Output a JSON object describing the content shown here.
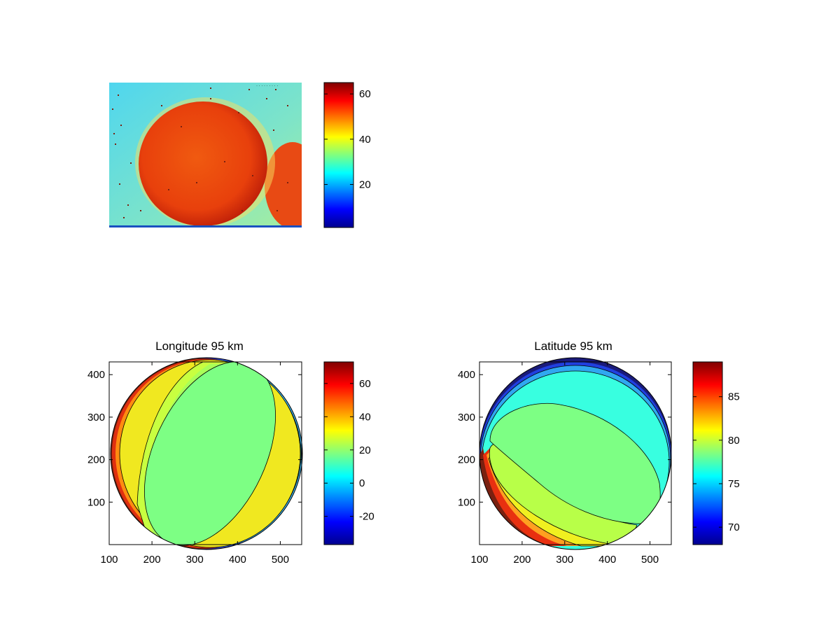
{
  "colormap": "jet",
  "jet_stops": [
    "#00008f",
    "#0000ff",
    "#00ffff",
    "#ffff00",
    "#ff0000",
    "#800000"
  ],
  "chart_data": [
    {
      "type": "heatmap",
      "title": "",
      "description_values": {
        "disk_level": 55,
        "background_level": 30
      },
      "colorbar": {
        "min": 1,
        "max": 65,
        "ticks": [
          20,
          40,
          60
        ]
      }
    },
    {
      "type": "heatmap",
      "title": "Longitude 95 km",
      "xlim": [
        100,
        550
      ],
      "ylim": [
        0,
        430
      ],
      "xticks": [
        100,
        200,
        300,
        400,
        500
      ],
      "yticks": [
        100,
        200,
        300,
        400
      ],
      "colorbar": {
        "min": -37,
        "max": 73,
        "ticks": [
          -20,
          0,
          20,
          40,
          60
        ]
      },
      "contour_levels": [
        70,
        60,
        50,
        40,
        30,
        20,
        10,
        0,
        -10,
        -20
      ]
    },
    {
      "type": "heatmap",
      "title": "Latitude 95 km",
      "xlim": [
        100,
        550
      ],
      "ylim": [
        0,
        430
      ],
      "xticks": [
        100,
        200,
        300,
        400,
        500
      ],
      "yticks": [
        100,
        200,
        300,
        400
      ],
      "colorbar": {
        "min": 68,
        "max": 89,
        "ticks": [
          70,
          75,
          80,
          85
        ]
      },
      "contour_levels": [
        88,
        86,
        84,
        82,
        80,
        78,
        76,
        74,
        72,
        70
      ]
    }
  ]
}
